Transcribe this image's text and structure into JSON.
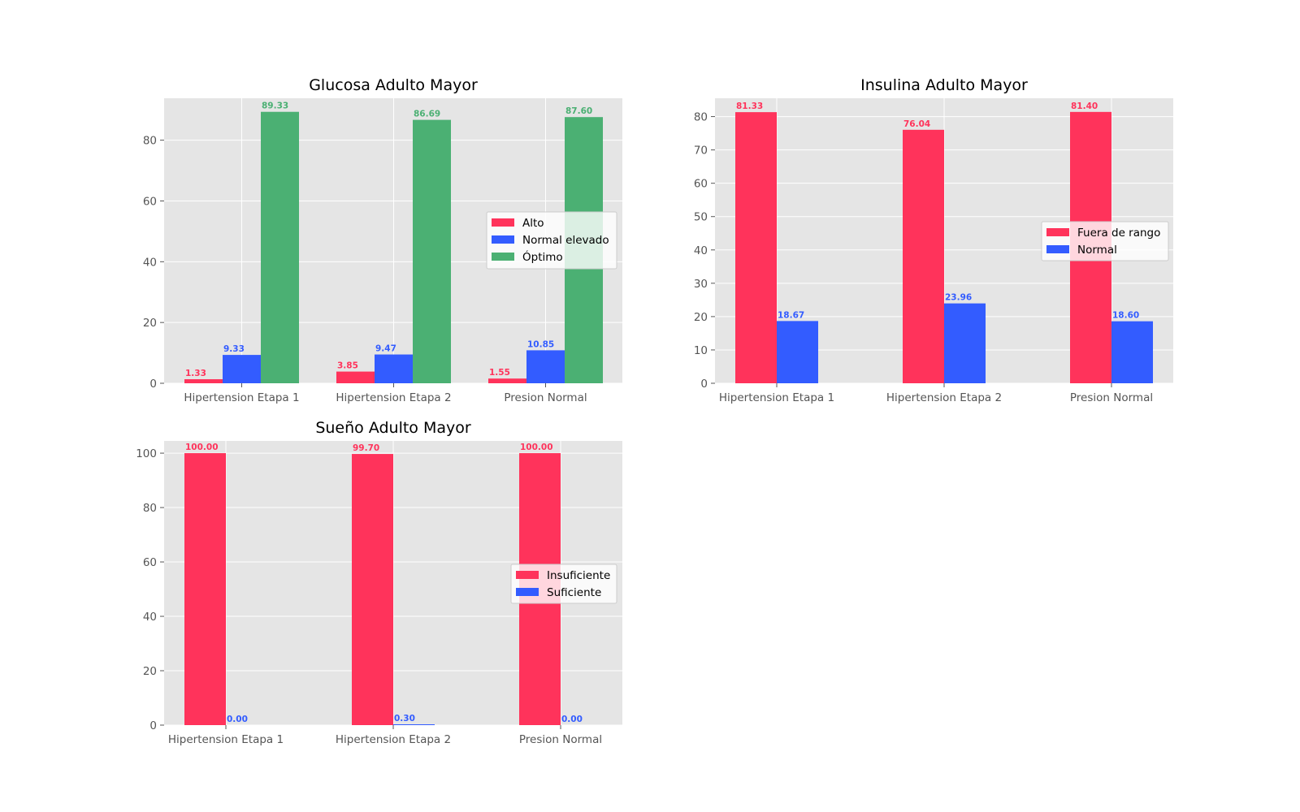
{
  "colors": {
    "background": "#e5e5e5",
    "grid": "#ffffff",
    "series_red": "#ff335b",
    "series_blue": "#335cff",
    "series_green": "#4bb073"
  },
  "chart_data": [
    {
      "type": "bar",
      "title": "Glucosa Adulto Mayor",
      "categories": [
        "Hipertension Etapa 1",
        "Hipertension Etapa 2",
        "Presion Normal"
      ],
      "series": [
        {
          "name": "Alto",
          "values": [
            1.33,
            3.85,
            1.55
          ],
          "labels": [
            "1.33",
            "3.85",
            "1.55"
          ],
          "color": "#ff335b"
        },
        {
          "name": "Normal elevado",
          "values": [
            9.33,
            9.47,
            10.85
          ],
          "labels": [
            "9.33",
            "9.47",
            "10.85"
          ],
          "color": "#335cff"
        },
        {
          "name": "Óptimo",
          "values": [
            89.33,
            86.69,
            87.6
          ],
          "labels": [
            "89.33",
            "86.69",
            "87.60"
          ],
          "color": "#4bb073"
        }
      ],
      "ylim": [
        0,
        93.8
      ],
      "yticks": [
        "0",
        "20",
        "40",
        "60",
        "80"
      ],
      "legend": "center-right",
      "grid": true
    },
    {
      "type": "bar",
      "title": "Insulina Adulto Mayor",
      "categories": [
        "Hipertension Etapa 1",
        "Hipertension Etapa 2",
        "Presion Normal"
      ],
      "series": [
        {
          "name": "Fuera de rango",
          "values": [
            81.33,
            76.04,
            81.4
          ],
          "labels": [
            "81.33",
            "76.04",
            "81.40"
          ],
          "color": "#ff335b"
        },
        {
          "name": "Normal",
          "values": [
            18.67,
            23.96,
            18.6
          ],
          "labels": [
            "18.67",
            "23.96",
            "18.60"
          ],
          "color": "#335cff"
        }
      ],
      "ylim": [
        0,
        85.5
      ],
      "yticks": [
        "0",
        "10",
        "20",
        "30",
        "40",
        "50",
        "60",
        "70",
        "80"
      ],
      "legend": "center-right",
      "grid": true
    },
    {
      "type": "bar",
      "title": "Sueño Adulto Mayor",
      "categories": [
        "Hipertension Etapa 1",
        "Hipertension Etapa 2",
        "Presion Normal"
      ],
      "series": [
        {
          "name": "Insuficiente",
          "values": [
            100.0,
            99.7,
            100.0
          ],
          "labels": [
            "100.00",
            "99.70",
            "100.00"
          ],
          "color": "#ff335b"
        },
        {
          "name": "Suficiente",
          "values": [
            0.0,
            0.3,
            0.0
          ],
          "labels": [
            "0.00",
            "0.30",
            "0.00"
          ],
          "color": "#335cff"
        }
      ],
      "ylim": [
        0,
        104.5
      ],
      "yticks": [
        "0",
        "20",
        "40",
        "60",
        "80",
        "100"
      ],
      "legend": "center-right",
      "grid": true
    }
  ]
}
